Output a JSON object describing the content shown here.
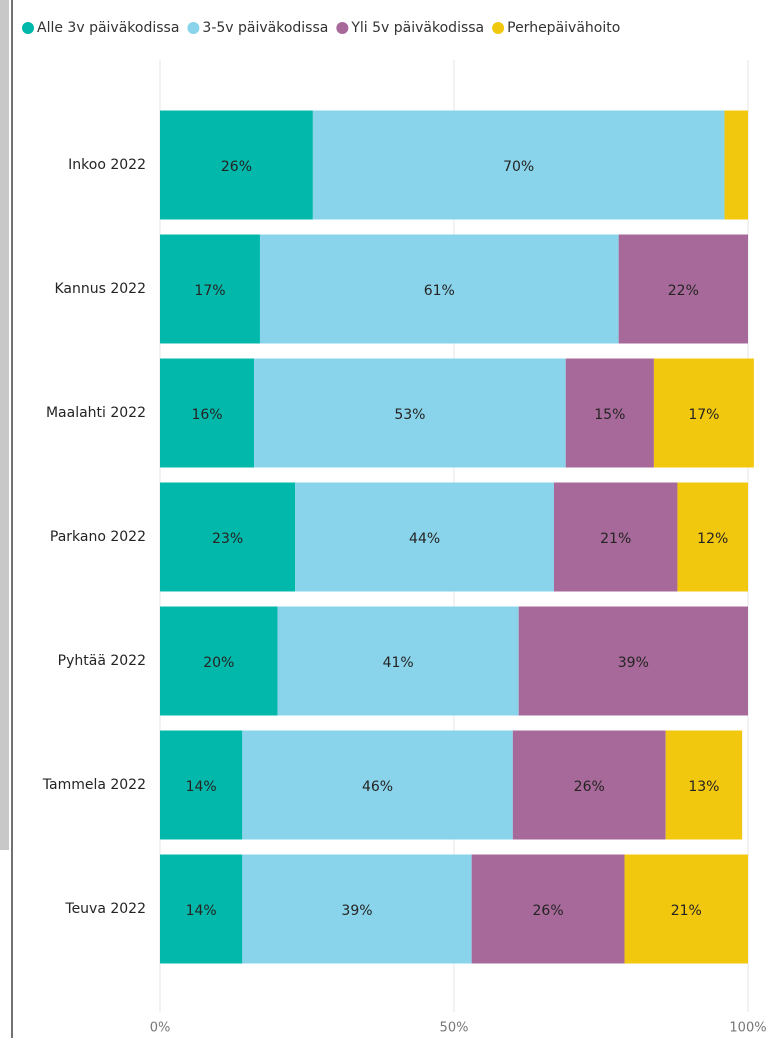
{
  "chart_data": {
    "type": "stacked-bar-horizontal",
    "categories": [
      "Inkoo 2022",
      "Kannus 2022",
      "Maalahti 2022",
      "Parkano 2022",
      "Pyhtää 2022",
      "Tammela 2022",
      "Teuva 2022"
    ],
    "series": [
      {
        "name": "Alle 3v päiväkodissa",
        "color": "#01B8AA",
        "values": [
          26,
          17,
          16,
          23,
          20,
          14,
          14
        ],
        "value_labels": [
          "26%",
          "17%",
          "16%",
          "23%",
          "20%",
          "14%",
          "14%"
        ]
      },
      {
        "name": "3-5v päiväkodissa",
        "color": "#8AD4EB",
        "values": [
          70,
          61,
          53,
          44,
          41,
          46,
          39
        ],
        "value_labels": [
          "70%",
          "61%",
          "53%",
          "44%",
          "41%",
          "46%",
          "39%"
        ]
      },
      {
        "name": "Yli 5v päiväkodissa",
        "color": "#A66999",
        "values": [
          null,
          22,
          15,
          21,
          39,
          26,
          26
        ],
        "value_labels": [
          null,
          "22%",
          "15%",
          "21%",
          "39%",
          "26%",
          "26%"
        ]
      },
      {
        "name": "Perhepäivähoito",
        "color": "#F2C80F",
        "values": [
          4,
          null,
          17,
          12,
          null,
          13,
          21
        ],
        "value_labels": [
          null,
          null,
          "17%",
          "12%",
          null,
          "13%",
          "21%"
        ]
      }
    ],
    "xlim": [
      0,
      100
    ],
    "xticks": [
      {
        "value": 0,
        "label": "0%"
      },
      {
        "value": 50,
        "label": "50%"
      },
      {
        "value": 100,
        "label": "100%"
      }
    ],
    "grid": true,
    "legend": "top-left"
  }
}
